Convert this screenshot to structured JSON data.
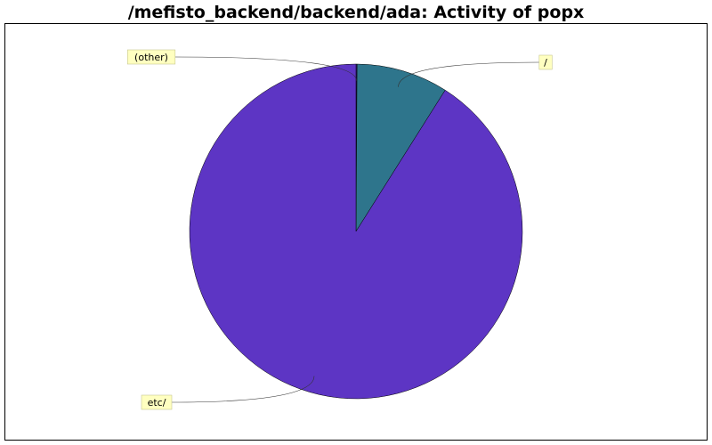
{
  "chart_data": {
    "type": "pie",
    "title": "/mefisto_backend/backend/ada: Activity of popx",
    "slices": [
      {
        "label": "(other)",
        "value": 0.1,
        "color": "#3d1f9e"
      },
      {
        "label": "/",
        "value": 8.9,
        "color": "#2e758c"
      },
      {
        "label": "etc/",
        "value": 91.0,
        "color": "#5d35c4"
      }
    ],
    "label_background": "#ffffc0"
  }
}
